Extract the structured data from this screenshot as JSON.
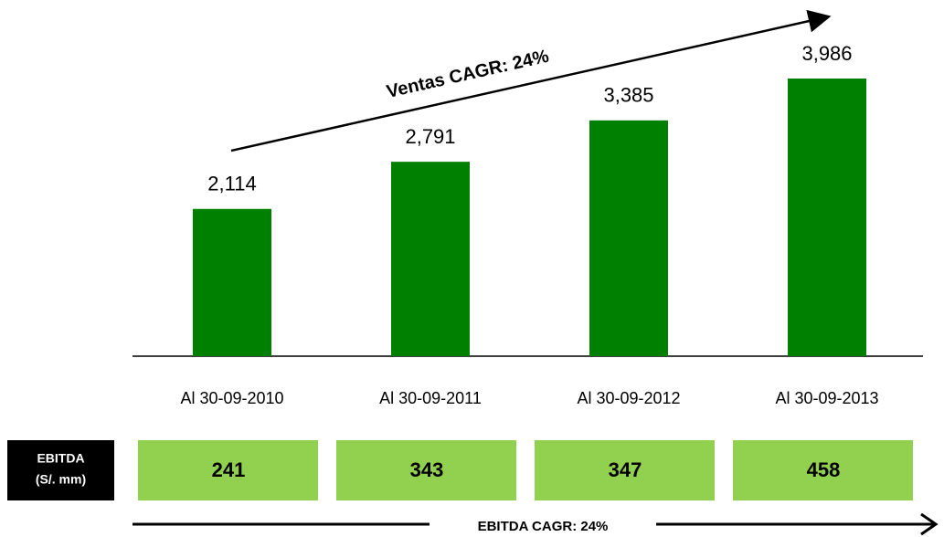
{
  "chart_data": {
    "type": "bar",
    "categories": [
      "Al 30-09-2010",
      "Al 30-09-2011",
      "Al 30-09-2012",
      "Al 30-09-2013"
    ],
    "values": [
      2114,
      2791,
      3385,
      3986
    ],
    "value_labels": [
      "2,114",
      "2,791",
      "3,385",
      "3,986"
    ],
    "color": "#008000",
    "annotation": "Ventas CAGR: 24%",
    "ebitda": {
      "label": [
        "EBITDA",
        "(S/. mm)"
      ],
      "values": [
        241,
        343,
        347,
        458
      ],
      "color": "#92d050",
      "annotation": "EBITDA CAGR: 24%"
    }
  }
}
